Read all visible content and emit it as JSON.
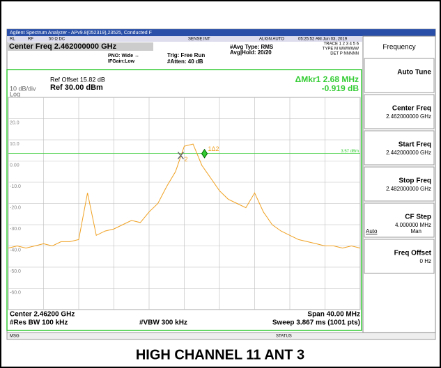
{
  "window": {
    "title": "Agilent Spectrum Analyzer - APv9.8(052319),23525, Conducted F",
    "status_row": [
      "RL",
      "RF",
      "50 Ω  DC",
      "SENSE:INT",
      "ALIGN AUTO",
      "05:25:52 AM Jun 03, 2019"
    ],
    "trace_info": [
      "TRACE 1 2 3 4 5 6",
      "TYPE M WWWWW",
      "DET P NNNNN"
    ],
    "center_freq": "Center Freq 2.462000000 GHz",
    "settings": [
      "PNO: Wide ↔",
      "IFGain:Low",
      "Trig: Free Run",
      "#Atten: 40 dB",
      "#Avg Type: RMS",
      "Avg|Hold: 20/20"
    ],
    "ref_offset": "Ref Offset 15.82 dB",
    "scale": "10 dB/div",
    "ref_level": "Ref 30.00 dBm",
    "log": "Log",
    "marker_readout": [
      "ΔMkr1 2.68 MHz",
      "-0.919 dB"
    ],
    "footer": [
      "Center 2.46200 GHz",
      "#Res BW 100 kHz",
      "#VBW 300 kHz",
      "Span 40.00 MHz",
      "Sweep  3.867 ms (1001 pts)"
    ],
    "status_bar": [
      "MSG",
      "STATUS"
    ]
  },
  "softkeys": {
    "header": "Frequency",
    "keys": [
      {
        "label": "Auto Tune"
      },
      {
        "label": "Center Freq",
        "value": "2.462000000 GHz"
      },
      {
        "label": "Start Freq",
        "value": "2.442000000 GHz"
      },
      {
        "label": "Stop Freq",
        "value": "2.482000000 GHz"
      },
      {
        "label": "CF Step",
        "value": "4.000000 MHz",
        "options": [
          "Auto",
          "Man"
        ]
      },
      {
        "label": "Freq Offset",
        "value": "0 Hz"
      }
    ]
  },
  "caption": "HIGH CHANNEL 11 ANT 3",
  "chart_data": {
    "type": "line",
    "color": "#f0a020",
    "x": [
      2.442,
      2.443,
      2.444,
      2.445,
      2.446,
      2.447,
      2.448,
      2.449,
      2.45,
      2.451,
      2.452,
      2.453,
      2.454,
      2.455,
      2.456,
      2.457,
      2.458,
      2.459,
      2.46,
      2.461,
      2.462,
      2.463,
      2.464,
      2.465,
      2.466,
      2.467,
      2.468,
      2.469,
      2.47,
      2.471,
      2.472,
      2.473,
      2.474,
      2.475,
      2.476,
      2.477,
      2.478,
      2.479,
      2.48,
      2.481,
      2.482
    ],
    "values": [
      -41,
      -40,
      -41,
      -40,
      -39,
      -40,
      -38,
      -38,
      -37,
      -15,
      -35,
      -33,
      -32,
      -30,
      -28,
      -29,
      -24,
      -20,
      -12,
      -5,
      7,
      8,
      -2,
      -8,
      -14,
      -18,
      -20,
      -22,
      -15,
      -24,
      -30,
      -33,
      -35,
      -37,
      -38,
      -39,
      -40,
      -40,
      -41,
      -40,
      -41
    ],
    "xlim": [
      2.442,
      2.482
    ],
    "ylim": [
      -70,
      30
    ],
    "yticks": [
      {
        "value": 20,
        "label": "20.0"
      },
      {
        "value": 10,
        "label": "10.0"
      },
      {
        "value": 0,
        "label": "0.00"
      },
      {
        "value": -10,
        "label": "-10.0"
      },
      {
        "value": -20,
        "label": "-20.0"
      },
      {
        "value": -30,
        "label": "-30.0"
      },
      {
        "value": -40,
        "label": "-40.0"
      },
      {
        "value": -50,
        "label": "-50.0"
      },
      {
        "value": -60,
        "label": "-60.0"
      }
    ],
    "display_line": {
      "value": 3.57,
      "label": "3.57 dBm"
    },
    "markers": [
      {
        "label": "1Δ2",
        "x": 2.4643,
        "y": 3.5
      },
      {
        "label": "2",
        "x": 2.4616,
        "y": 2.6
      }
    ]
  }
}
